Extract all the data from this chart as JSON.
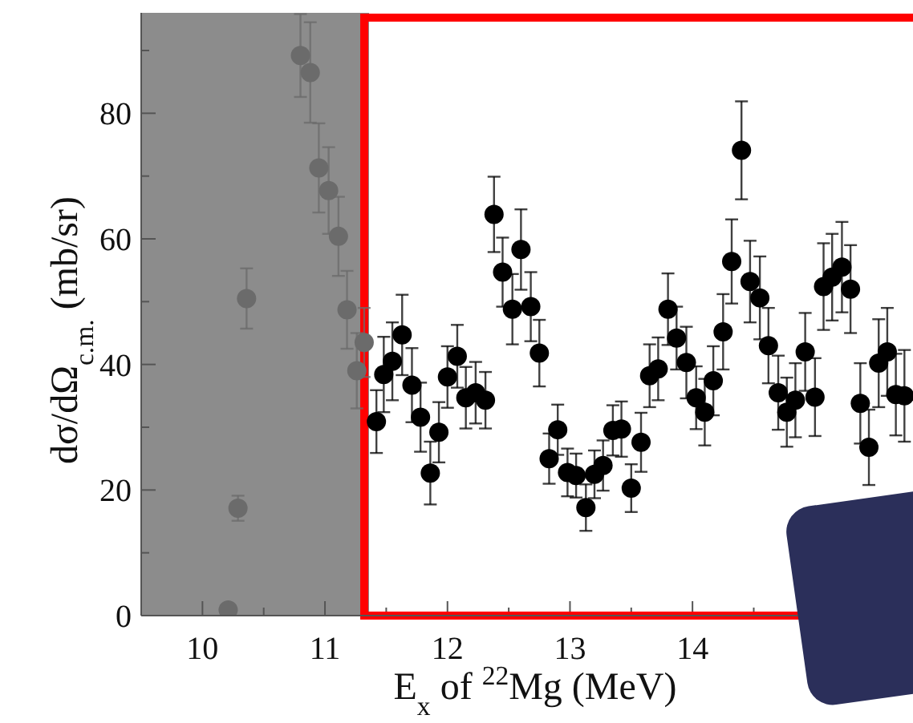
{
  "chart_data": {
    "type": "scatter",
    "xlabel": "E$_{x}$ of $^{22}$Mg (MeV)",
    "ylabel": "dσ/dΩ$_{c.m.}$ (mb/sr)",
    "xlim": [
      9.5,
      15.8
    ],
    "ylim": [
      0,
      96
    ],
    "xticks": [
      10,
      {
        "value": 10.5,
        "label": null
      },
      11,
      {
        "value": 11.5,
        "label": null
      },
      12,
      {
        "value": 12.5,
        "label": null
      },
      13,
      {
        "value": 13.5,
        "label": null
      },
      14,
      {
        "value": 14.5,
        "label": null
      },
      {
        "value": 15,
        "label": null
      },
      {
        "value": 15.5,
        "label": null
      }
    ],
    "yticks": [
      0,
      {
        "value": 10,
        "label": null
      },
      20,
      {
        "value": 30,
        "label": null
      },
      40,
      {
        "value": 50,
        "label": null
      },
      60,
      {
        "value": 70,
        "label": null
      },
      80,
      {
        "value": 90,
        "label": null
      }
    ],
    "grid": false,
    "marker": "circle",
    "bands": [
      {
        "axis": "x",
        "from": 9.5,
        "to": 11.36,
        "color": "#8c8c8c"
      }
    ],
    "series": [
      {
        "color": "#6b6b6b",
        "x": [
          10.21,
          10.29,
          10.36,
          10.8,
          10.88,
          10.95,
          11.03,
          11.11,
          11.18,
          11.26,
          11.32
        ],
        "values": [
          0.9,
          17.1,
          50.5,
          89.2,
          86.5,
          71.3,
          67.7,
          60.4,
          48.7,
          39.0,
          43.5
        ],
        "errors": [
          null,
          2,
          4.8,
          6.6,
          8,
          7.1,
          6.9,
          6.3,
          6.2,
          6,
          5.5
        ]
      },
      {
        "color": "#000000",
        "x": [
          11.42,
          11.48,
          11.55,
          11.63,
          11.71,
          11.78,
          11.86,
          11.93,
          12.0,
          12.08,
          12.15,
          12.23,
          12.31,
          12.38,
          12.45,
          12.53,
          12.6,
          12.68,
          12.75,
          12.83,
          12.9,
          12.98,
          13.05,
          13.13,
          13.2,
          13.27,
          13.35,
          13.42,
          13.5,
          13.58,
          13.65,
          13.72,
          13.8,
          13.87,
          13.95,
          14.03,
          14.1,
          14.17,
          14.25,
          14.32,
          14.4,
          14.47,
          14.55,
          14.62,
          14.7,
          14.77,
          14.84,
          14.92,
          15.0,
          15.07,
          15.14,
          15.22,
          15.29,
          15.37,
          15.44,
          15.52,
          15.59,
          15.66,
          15.73
        ],
        "values": [
          30.9,
          38.4,
          40.5,
          44.7,
          36.7,
          31.6,
          22.7,
          29.2,
          38.0,
          41.3,
          34.7,
          35.5,
          34.3,
          63.9,
          54.7,
          48.8,
          58.3,
          49.2,
          41.8,
          25.0,
          29.6,
          22.8,
          22.3,
          17.2,
          22.5,
          23.9,
          29.5,
          29.7,
          20.3,
          27.6,
          38.2,
          39.3,
          48.8,
          44.2,
          40.3,
          34.7,
          32.4,
          37.4,
          45.2,
          56.4,
          74.1,
          53.2,
          50.6,
          43.0,
          35.5,
          32.4,
          34.3,
          42.0,
          34.8,
          52.4,
          53.9,
          55.5,
          52.0,
          33.8,
          26.8,
          40.2,
          42.0,
          35.2,
          35.0
        ],
        "errors": [
          5,
          6,
          6.2,
          6.4,
          5.9,
          5.5,
          5,
          4.8,
          4.9,
          5,
          4.9,
          4.9,
          4.5,
          6,
          5.5,
          5.6,
          6.4,
          5.5,
          5.3,
          4,
          4,
          3.8,
          3.5,
          3.7,
          3.8,
          4,
          4,
          4.4,
          3.8,
          4.7,
          5,
          5,
          5.7,
          5,
          5.7,
          5,
          5.3,
          5.5,
          6,
          6.7,
          7.8,
          6.5,
          6.6,
          6,
          5.9,
          5.5,
          5.9,
          6.2,
          6.2,
          6.9,
          6.9,
          7.2,
          7,
          6.4,
          6,
          7,
          7,
          6.5,
          7.3
        ]
      }
    ]
  }
}
